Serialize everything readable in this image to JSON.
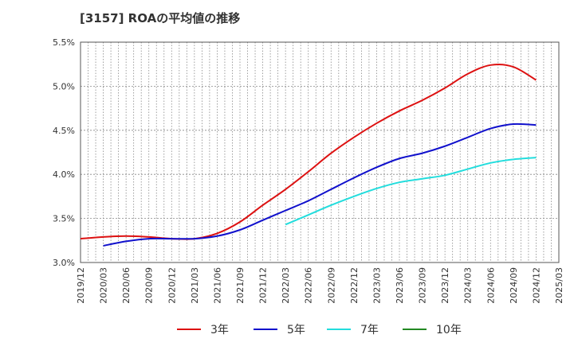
{
  "chart_data": {
    "type": "line",
    "title": "[3157]  ROAの平均値の推移",
    "xlabel": "",
    "ylabel": "",
    "ylim": [
      3.0,
      5.5
    ],
    "yticks": [
      "3.0%",
      "3.5%",
      "4.0%",
      "4.5%",
      "5.0%",
      "5.5%"
    ],
    "y_tick_values": [
      3.0,
      3.5,
      4.0,
      4.5,
      5.0,
      5.5
    ],
    "x_tick_labels": [
      "2019/12",
      "2020/03",
      "2020/06",
      "2020/09",
      "2020/12",
      "2021/03",
      "2021/06",
      "2021/09",
      "2021/12",
      "2022/03",
      "2022/06",
      "2022/09",
      "2022/12",
      "2023/03",
      "2023/06",
      "2023/09",
      "2023/12",
      "2024/03",
      "2024/06",
      "2024/09",
      "2024/12",
      "2025/03"
    ],
    "grid": true,
    "legend_position": "bottom",
    "series": [
      {
        "name": "3年",
        "color": "#dd1111",
        "points": [
          [
            "2019/12",
            3.27
          ],
          [
            "2020/03",
            3.29
          ],
          [
            "2020/06",
            3.3
          ],
          [
            "2020/09",
            3.29
          ],
          [
            "2020/12",
            3.27
          ],
          [
            "2021/03",
            3.27
          ],
          [
            "2021/06",
            3.33
          ],
          [
            "2021/09",
            3.46
          ],
          [
            "2021/12",
            3.65
          ],
          [
            "2022/03",
            3.83
          ],
          [
            "2022/06",
            4.03
          ],
          [
            "2022/09",
            4.24
          ],
          [
            "2022/12",
            4.42
          ],
          [
            "2023/03",
            4.58
          ],
          [
            "2023/06",
            4.72
          ],
          [
            "2023/09",
            4.84
          ],
          [
            "2023/12",
            4.98
          ],
          [
            "2024/03",
            5.14
          ],
          [
            "2024/06",
            5.24
          ],
          [
            "2024/09",
            5.22
          ],
          [
            "2024/12",
            5.07
          ]
        ]
      },
      {
        "name": "5年",
        "color": "#1111cc",
        "points": [
          [
            "2020/03",
            3.19
          ],
          [
            "2020/06",
            3.24
          ],
          [
            "2020/09",
            3.27
          ],
          [
            "2020/12",
            3.27
          ],
          [
            "2021/03",
            3.27
          ],
          [
            "2021/06",
            3.3
          ],
          [
            "2021/09",
            3.37
          ],
          [
            "2021/12",
            3.48
          ],
          [
            "2022/03",
            3.59
          ],
          [
            "2022/06",
            3.7
          ],
          [
            "2022/09",
            3.83
          ],
          [
            "2022/12",
            3.96
          ],
          [
            "2023/03",
            4.08
          ],
          [
            "2023/06",
            4.18
          ],
          [
            "2023/09",
            4.24
          ],
          [
            "2023/12",
            4.32
          ],
          [
            "2024/03",
            4.42
          ],
          [
            "2024/06",
            4.52
          ],
          [
            "2024/09",
            4.57
          ],
          [
            "2024/12",
            4.56
          ]
        ]
      },
      {
        "name": "7年",
        "color": "#22dddd",
        "points": [
          [
            "2022/03",
            3.43
          ],
          [
            "2022/06",
            3.54
          ],
          [
            "2022/09",
            3.65
          ],
          [
            "2022/12",
            3.75
          ],
          [
            "2023/03",
            3.84
          ],
          [
            "2023/06",
            3.91
          ],
          [
            "2023/09",
            3.95
          ],
          [
            "2023/12",
            3.99
          ],
          [
            "2024/03",
            4.06
          ],
          [
            "2024/06",
            4.13
          ],
          [
            "2024/09",
            4.17
          ],
          [
            "2024/12",
            4.19
          ]
        ]
      },
      {
        "name": "10年",
        "color": "#228822",
        "points": []
      }
    ]
  }
}
